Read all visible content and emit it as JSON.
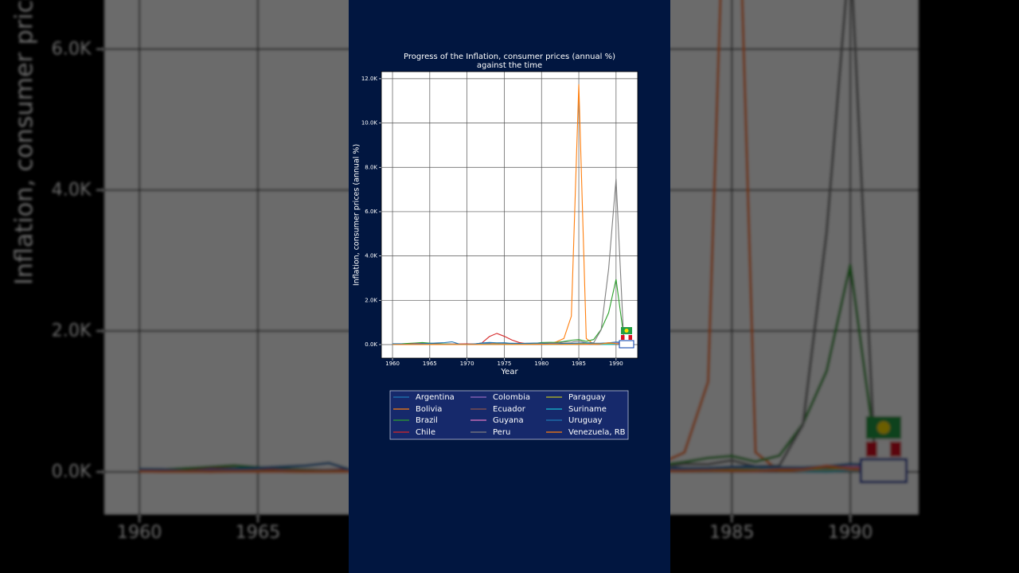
{
  "chart_data": {
    "type": "line",
    "title": [
      "Progress of the Inflation, consumer prices (annual %)",
      "against the time"
    ],
    "x_label": "Year",
    "y_label": "Inflation, consumer prices (annual %)",
    "x": [
      1960,
      1961,
      1962,
      1963,
      1964,
      1965,
      1966,
      1967,
      1968,
      1969,
      1970,
      1971,
      1972,
      1973,
      1974,
      1975,
      1976,
      1977,
      1978,
      1979,
      1980,
      1981,
      1982,
      1983,
      1984,
      1985,
      1986,
      1987,
      1988,
      1989,
      1990,
      1991
    ],
    "xlim": [
      1958.5,
      1992.9
    ],
    "xticks": [
      1960,
      1965,
      1970,
      1975,
      1980,
      1985,
      1990
    ],
    "ylim": [
      -611,
      12320
    ],
    "yticks": [
      {
        "value": 0,
        "label": "0.0K"
      },
      {
        "value": 2000,
        "label": "2.0K"
      },
      {
        "value": 4000,
        "label": "4.0K"
      },
      {
        "value": 6000,
        "label": "6.0K"
      },
      {
        "value": 8000,
        "label": "8.0K"
      },
      {
        "value": 10000,
        "label": "10.0K"
      },
      {
        "value": 12000,
        "label": "12.0K"
      }
    ],
    "grid": true,
    "series": [
      {
        "name": "Argentina",
        "color": "#1f77b4",
        "values": [
          27,
          14,
          29,
          24,
          22,
          29,
          32,
          29,
          16,
          8,
          14,
          35,
          58,
          61,
          24,
          40,
          60,
          50,
          60,
          60,
          50,
          50,
          60,
          50,
          40,
          40,
          40,
          40,
          40,
          50,
          60,
          70
        ]
      },
      {
        "name": "Bolivia",
        "color": "#ff7f0e",
        "values": [
          12,
          8,
          6,
          0,
          10,
          3,
          7,
          11,
          6,
          2,
          4,
          4,
          6,
          32,
          63,
          8,
          5,
          8,
          10,
          20,
          47,
          32,
          124,
          276,
          1281,
          11750,
          276,
          15,
          16,
          15,
          18,
          21
        ]
      },
      {
        "name": "Brazil",
        "color": "#2ca02c",
        "values": [
          30,
          33,
          52,
          71,
          92,
          66,
          41,
          30,
          22,
          22,
          22,
          20,
          17,
          13,
          28,
          29,
          42,
          44,
          39,
          53,
          91,
          101,
          98,
          142,
          197,
          227,
          145,
          230,
          682,
          1431,
          2948,
          432
        ]
      },
      {
        "name": "Chile",
        "color": "#d62728",
        "values": [
          12,
          8,
          14,
          44,
          46,
          29,
          23,
          18,
          27,
          29,
          35,
          20,
          75,
          362,
          505,
          375,
          212,
          92,
          40,
          33,
          35,
          20,
          10,
          27,
          20,
          31,
          19,
          20,
          15,
          17,
          26,
          22
        ]
      },
      {
        "name": "Colombia",
        "color": "#9467bd",
        "values": [
          4,
          9,
          3,
          33,
          17,
          4,
          20,
          8,
          6,
          9,
          7,
          9,
          14,
          23,
          24,
          23,
          21,
          33,
          17,
          24,
          27,
          28,
          24,
          20,
          16,
          24,
          19,
          23,
          28,
          26,
          29,
          30
        ]
      },
      {
        "name": "Ecuador",
        "color": "#8c564b",
        "values": [
          2,
          3,
          4,
          5,
          5,
          4,
          5,
          4,
          4,
          6,
          5,
          8,
          8,
          13,
          23,
          15,
          11,
          13,
          12,
          10,
          13,
          16,
          16,
          48,
          31,
          28,
          23,
          29,
          58,
          76,
          49,
          49
        ]
      },
      {
        "name": "Guyana",
        "color": "#e377c2",
        "values": [
          2,
          2,
          2,
          2,
          2,
          2,
          2,
          2,
          2,
          2,
          3,
          3,
          6,
          8,
          17,
          8,
          9,
          8,
          15,
          15,
          14,
          29,
          20,
          15,
          25,
          15,
          8,
          28,
          40,
          89,
          64,
          70
        ]
      },
      {
        "name": "Peru",
        "color": "#7f7f7f",
        "values": [
          8,
          6,
          6,
          6,
          10,
          16,
          9,
          10,
          19,
          6,
          5,
          7,
          7,
          9,
          17,
          24,
          34,
          38,
          58,
          67,
          59,
          75,
          64,
          111,
          110,
          163,
          78,
          86,
          668,
          3399,
          7482,
          410
        ]
      },
      {
        "name": "Paraguay",
        "color": "#bcbd22",
        "values": [
          13,
          14,
          5,
          4,
          3,
          4,
          3,
          1,
          1,
          2,
          3,
          5,
          10,
          12,
          25,
          7,
          5,
          9,
          11,
          28,
          22,
          14,
          7,
          13,
          20,
          25,
          32,
          22,
          23,
          26,
          38,
          24
        ]
      },
      {
        "name": "Suriname",
        "color": "#17becf",
        "values": [
          2,
          2,
          2,
          2,
          3,
          3,
          3,
          4,
          5,
          3,
          3,
          4,
          5,
          13,
          16,
          10,
          9,
          9,
          9,
          15,
          14,
          9,
          7,
          4,
          4,
          11,
          19,
          53,
          8,
          1,
          22,
          26
        ]
      },
      {
        "name": "Uruguay",
        "color": "#1f77b4",
        "values": [
          39,
          38,
          11,
          21,
          42,
          57,
          74,
          89,
          125,
          21,
          16,
          24,
          76,
          97,
          77,
          81,
          51,
          58,
          44,
          67,
          64,
          34,
          19,
          49,
          55,
          72,
          76,
          64,
          62,
          80,
          113,
          102
        ]
      },
      {
        "name": "Venezuela, RB",
        "color": "#ff7f0e",
        "values": [
          4,
          1,
          1,
          1,
          2,
          2,
          2,
          0,
          1,
          2,
          3,
          3,
          3,
          4,
          8,
          10,
          8,
          8,
          7,
          12,
          21,
          16,
          10,
          6,
          12,
          11,
          12,
          28,
          30,
          84,
          41,
          34
        ]
      }
    ]
  }
}
